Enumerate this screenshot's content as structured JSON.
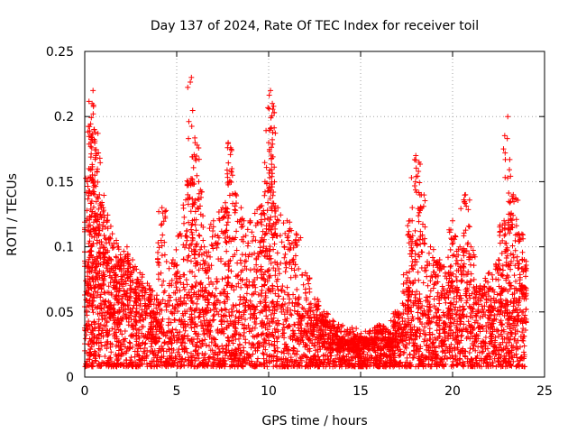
{
  "chart_data": {
    "type": "scatter",
    "title": "Day 137 of 2024, Rate Of TEC Index for receiver toil",
    "xlabel": "GPS time / hours",
    "ylabel": "ROTI / TECUs",
    "xlim": [
      0,
      25
    ],
    "ylim": [
      0,
      0.25
    ],
    "x_ticks": [
      0,
      5,
      10,
      15,
      20,
      25
    ],
    "y_ticks": [
      0,
      0.05,
      0.1,
      0.15,
      0.2,
      0.25
    ],
    "x_tick_labels": [
      "0",
      "5",
      "10",
      "15",
      "20",
      "25"
    ],
    "y_tick_labels": [
      "0",
      "0.05",
      "0.1",
      "0.15",
      "0.2",
      "0.25"
    ],
    "grid": true,
    "marker": "+",
    "series": [
      {
        "name": "ROTI",
        "color": "#ff0000",
        "x": [
          0.1,
          0.3,
          0.4,
          0.45,
          0.5,
          0.6,
          0.8,
          1.0,
          1.2,
          1.5,
          1.8,
          2.0,
          2.3,
          2.6,
          3.0,
          3.5,
          3.8,
          4.2,
          4.8,
          5.2,
          5.6,
          5.8,
          6.0,
          6.2,
          6.5,
          7.0,
          7.5,
          7.8,
          8.0,
          8.5,
          9.0,
          9.5,
          9.8,
          10.0,
          10.1,
          10.2,
          10.5,
          11.0,
          11.5,
          12.0,
          12.5,
          13.0,
          13.5,
          14.0,
          14.5,
          15.0,
          15.5,
          16.0,
          16.5,
          17.0,
          17.5,
          17.8,
          18.0,
          18.3,
          18.8,
          19.3,
          19.8,
          20.0,
          20.4,
          20.7,
          21.0,
          21.5,
          22.0,
          22.5,
          22.8,
          23.0,
          23.3,
          23.6,
          23.9
        ],
        "y": [
          0.12,
          0.16,
          0.21,
          0.22,
          0.19,
          0.17,
          0.14,
          0.13,
          0.12,
          0.11,
          0.1,
          0.09,
          0.1,
          0.09,
          0.08,
          0.07,
          0.06,
          0.13,
          0.09,
          0.11,
          0.14,
          0.23,
          0.18,
          0.15,
          0.1,
          0.12,
          0.13,
          0.18,
          0.16,
          0.13,
          0.12,
          0.13,
          0.15,
          0.18,
          0.22,
          0.21,
          0.13,
          0.12,
          0.11,
          0.08,
          0.06,
          0.05,
          0.04,
          0.03,
          0.03,
          0.03,
          0.03,
          0.04,
          0.03,
          0.05,
          0.08,
          0.12,
          0.17,
          0.14,
          0.1,
          0.09,
          0.08,
          0.12,
          0.1,
          0.14,
          0.1,
          0.07,
          0.08,
          0.09,
          0.12,
          0.2,
          0.14,
          0.11,
          0.09
        ],
        "baseline": {
          "x": [
            0,
            1,
            2,
            3,
            4,
            5,
            6,
            7,
            8,
            9,
            10,
            11,
            12,
            13,
            14,
            15,
            16,
            17,
            18,
            19,
            20,
            21,
            22,
            23,
            24
          ],
          "y": [
            0.04,
            0.06,
            0.05,
            0.045,
            0.035,
            0.03,
            0.04,
            0.035,
            0.04,
            0.04,
            0.045,
            0.035,
            0.03,
            0.025,
            0.02,
            0.018,
            0.018,
            0.025,
            0.035,
            0.03,
            0.045,
            0.04,
            0.035,
            0.04,
            0.035
          ]
        }
      }
    ]
  }
}
